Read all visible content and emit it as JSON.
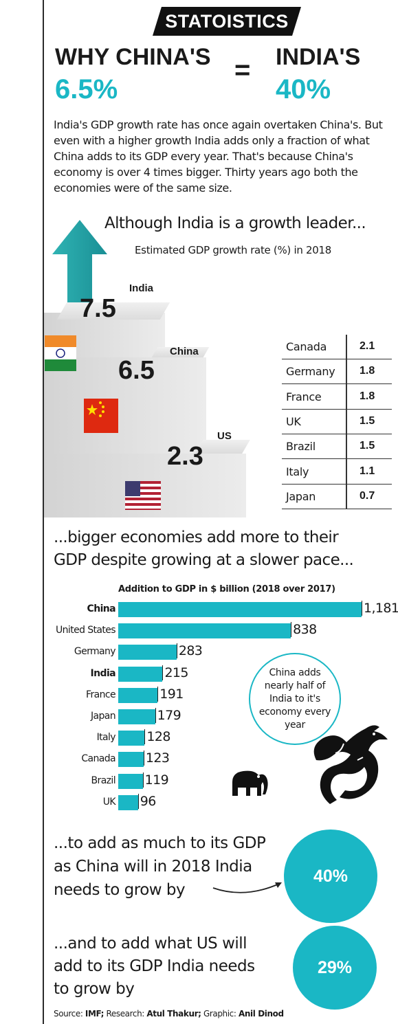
{
  "brand": "STATOISTICS",
  "headline": {
    "left_label": "WHY CHINA'S",
    "left_value": "6.5%",
    "equals": "=",
    "right_label": "INDIA'S",
    "right_value": "40%"
  },
  "intro": "India's GDP growth rate has once again overtaken China's. But even with a higher growth India adds only a fraction of what China adds to its GDP every year. That's because China's economy is over 4 times bigger. Thirty years ago both the economies were of the same size.",
  "section1": {
    "title": "Although India is a growth leader...",
    "subtitle": "Estimated GDP growth rate (%) in 2018"
  },
  "section2": {
    "title_line1": "...bigger economies add more to their",
    "title_line2": "GDP despite growing at a slower pace...",
    "subtitle": "Addition to GDP in $ billion (2018 over 2017)"
  },
  "bubble": {
    "lines": [
      "China adds",
      "nearly half of",
      "India to it's",
      "economy every",
      "year"
    ]
  },
  "callout1": {
    "lines": [
      "...to add as much to its GDP",
      "as China will in 2018 India",
      "needs to grow by"
    ],
    "value": "40%"
  },
  "callout2": {
    "lines": [
      "...and to add what US will",
      "add to its GDP India needs",
      "to grow by"
    ],
    "value": "29%"
  },
  "source": {
    "label1": "Source:",
    "val1": "IMF;",
    "label2": "Research:",
    "val2": "Atul Thakur;",
    "label3": "Graphic:",
    "val3": "Anil Dinod"
  },
  "chart_data": [
    {
      "type": "bar",
      "title": "Estimated GDP growth rate (%) in 2018",
      "categories": [
        "India",
        "China",
        "US"
      ],
      "values": [
        7.5,
        6.5,
        2.3
      ],
      "display_values": [
        "7.5",
        "6.5",
        "2.3"
      ]
    },
    {
      "type": "table",
      "title": "Estimated GDP growth rate (%) in 2018",
      "rows": [
        {
          "country": "Canada",
          "value": "2.1"
        },
        {
          "country": "Germany",
          "value": "1.8"
        },
        {
          "country": "France",
          "value": "1.8"
        },
        {
          "country": "UK",
          "value": "1.5"
        },
        {
          "country": "Brazil",
          "value": "1.5"
        },
        {
          "country": "Italy",
          "value": "1.1"
        },
        {
          "country": "Japan",
          "value": "0.7"
        }
      ]
    },
    {
      "type": "bar",
      "orientation": "horizontal",
      "title": "Addition to GDP in $ billion (2018 over 2017)",
      "categories": [
        "China",
        "United States",
        "Germany",
        "India",
        "France",
        "Japan",
        "Italy",
        "Canada",
        "Brazil",
        "UK"
      ],
      "values": [
        1181,
        838,
        283,
        215,
        191,
        179,
        128,
        123,
        119,
        96
      ],
      "display_values": [
        "1,181",
        "838",
        "283",
        "215",
        "191",
        "179",
        "128",
        "123",
        "119",
        "96"
      ],
      "bold_categories": [
        "China",
        "India"
      ],
      "color": "#1ab7c5",
      "xlim": [
        0,
        1181
      ]
    }
  ]
}
